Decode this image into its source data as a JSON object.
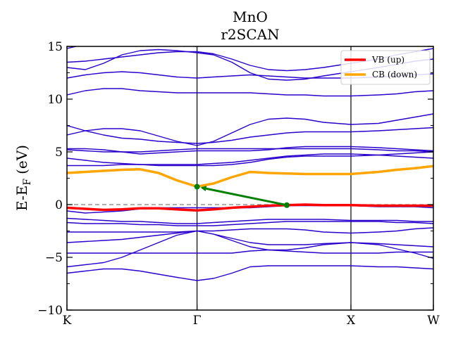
{
  "chart_data": {
    "type": "line",
    "title": "MnO",
    "subtitle": "r2SCAN",
    "ylabel": "E-E",
    "ylabel_sub": "F",
    "ylabel_unit": "(eV)",
    "ylim": [
      -10,
      15
    ],
    "yticks": [
      -10,
      -5,
      0,
      5,
      10,
      15
    ],
    "ytick_labels": [
      "−10",
      "−5",
      "0",
      "5",
      "10",
      "15"
    ],
    "xlim": [
      0,
      1
    ],
    "kpoints": [
      {
        "label": "K",
        "x": 0.0
      },
      {
        "label": "Γ",
        "x": 0.355
      },
      {
        "label": "X",
        "x": 0.775
      },
      {
        "label": "W",
        "x": 1.0
      }
    ],
    "fermi_level": 0,
    "legend_position": "top-right",
    "colors": {
      "bands": "#2a00cc",
      "vb": "#ff0000",
      "cb": "#ffa500",
      "arrow": "#008000",
      "fermi": "#808080"
    },
    "series": [
      {
        "name": "VB (up)",
        "color": "#ff0000",
        "x": [
          0,
          0.05,
          0.1,
          0.15,
          0.2,
          0.25,
          0.3,
          0.355,
          0.4,
          0.45,
          0.5,
          0.55,
          0.6,
          0.65,
          0.7,
          0.775,
          0.85,
          0.9,
          0.95,
          1.0
        ],
        "y": [
          -0.3,
          -0.4,
          -0.5,
          -0.45,
          -0.35,
          -0.35,
          -0.45,
          -0.55,
          -0.45,
          -0.3,
          -0.2,
          -0.1,
          -0.05,
          0.0,
          -0.05,
          -0.05,
          -0.1,
          -0.1,
          -0.1,
          -0.1
        ]
      },
      {
        "name": "CB (down)",
        "color": "#ffa500",
        "x": [
          0,
          0.05,
          0.1,
          0.15,
          0.2,
          0.25,
          0.3,
          0.355,
          0.4,
          0.45,
          0.5,
          0.55,
          0.6,
          0.65,
          0.7,
          0.775,
          0.85,
          0.9,
          0.95,
          1.0
        ],
        "y": [
          3.0,
          3.1,
          3.2,
          3.3,
          3.35,
          3.0,
          2.3,
          1.7,
          2.0,
          2.6,
          3.1,
          3.0,
          2.95,
          2.9,
          2.9,
          2.9,
          3.1,
          3.3,
          3.45,
          3.65
        ]
      }
    ],
    "bands": [
      [
        -6.5,
        -6.3,
        -6.1,
        -6.1,
        -6.3,
        -6.6,
        -6.9,
        -7.2,
        -7.0,
        -6.5,
        -5.9,
        -5.8,
        -5.8,
        -5.8,
        -5.8,
        -5.8,
        -5.9,
        -5.9,
        -6.0,
        -6.1
      ],
      [
        -5.9,
        -5.7,
        -5.5,
        -5.0,
        -4.3,
        -3.6,
        -2.9,
        -2.5,
        -2.8,
        -3.4,
        -4.0,
        -4.3,
        -4.3,
        -4.1,
        -3.8,
        -3.6,
        -3.8,
        -4.2,
        -4.6,
        -5.1
      ],
      [
        -4.6,
        -4.6,
        -4.6,
        -4.6,
        -4.6,
        -4.6,
        -4.6,
        -4.6,
        -4.6,
        -4.6,
        -4.4,
        -4.3,
        -4.4,
        -4.5,
        -4.6,
        -4.6,
        -4.6,
        -4.5,
        -4.5,
        -4.5
      ],
      [
        -3.6,
        -3.5,
        -3.4,
        -3.3,
        -3.1,
        -2.9,
        -2.7,
        -2.5,
        -2.8,
        -3.2,
        -3.6,
        -3.8,
        -3.8,
        -3.8,
        -3.7,
        -3.6,
        -3.7,
        -3.8,
        -3.9,
        -4.0
      ],
      [
        -2.6,
        -2.6,
        -2.6,
        -2.6,
        -2.6,
        -2.6,
        -2.6,
        -2.5,
        -2.5,
        -2.4,
        -2.3,
        -2.3,
        -2.3,
        -2.4,
        -2.6,
        -2.7,
        -2.6,
        -2.5,
        -2.3,
        -2.2
      ],
      [
        -1.7,
        -1.8,
        -1.8,
        -1.8,
        -1.9,
        -1.9,
        -2.0,
        -2.0,
        -2.0,
        -1.9,
        -1.8,
        -1.7,
        -1.6,
        -1.6,
        -1.6,
        -1.6,
        -1.6,
        -1.7,
        -1.7,
        -1.8
      ],
      [
        -1.3,
        -1.4,
        -1.5,
        -1.6,
        -1.6,
        -1.7,
        -1.8,
        -1.8,
        -1.7,
        -1.6,
        -1.5,
        -1.4,
        -1.4,
        -1.4,
        -1.4,
        -1.5,
        -1.5,
        -1.5,
        -1.6,
        -1.6
      ],
      [
        -0.6,
        -0.8,
        -0.7,
        -0.6,
        -0.4,
        -0.3,
        -0.3,
        -0.3,
        -0.3,
        -0.3,
        -0.3,
        -0.2,
        -0.1,
        -0.1,
        -0.1,
        -0.1,
        -0.2,
        -0.2,
        -0.2,
        -0.3
      ],
      [
        3.7,
        3.7,
        3.7,
        3.8,
        3.8,
        3.8,
        3.8,
        3.8,
        3.9,
        4.0,
        4.2,
        4.4,
        4.6,
        4.7,
        4.8,
        4.8,
        4.7,
        4.6,
        4.5,
        4.4
      ],
      [
        4.4,
        4.2,
        4.0,
        3.9,
        3.8,
        3.7,
        3.7,
        3.7,
        3.7,
        3.8,
        4.0,
        4.3,
        4.5,
        4.6,
        4.6,
        4.6,
        4.7,
        4.8,
        4.9,
        5.0
      ],
      [
        5.2,
        5.1,
        5.0,
        5.0,
        5.0,
        5.1,
        5.2,
        5.3,
        5.3,
        5.3,
        5.3,
        5.3,
        5.3,
        5.3,
        5.3,
        5.3,
        5.2,
        5.1,
        5.1,
        5.0
      ],
      [
        5.3,
        5.3,
        5.2,
        5.0,
        4.8,
        4.9,
        5.0,
        5.1,
        5.1,
        5.1,
        5.1,
        5.2,
        5.4,
        5.5,
        5.5,
        5.5,
        5.4,
        5.3,
        5.2,
        5.1
      ],
      [
        7.5,
        7.0,
        6.6,
        6.3,
        6.2,
        6.0,
        5.9,
        5.8,
        5.9,
        6.1,
        6.4,
        6.6,
        6.8,
        6.9,
        6.9,
        6.9,
        7.0,
        7.1,
        7.2,
        7.3
      ],
      [
        6.6,
        7.0,
        7.2,
        7.2,
        7.0,
        6.5,
        6.0,
        5.6,
        6.0,
        6.8,
        7.6,
        8.1,
        8.2,
        8.1,
        7.8,
        7.6,
        7.7,
        8.0,
        8.3,
        8.6
      ],
      [
        10.4,
        10.8,
        11.0,
        11.0,
        10.8,
        10.7,
        10.6,
        10.6,
        10.6,
        10.6,
        10.6,
        10.5,
        10.4,
        10.4,
        10.3,
        10.3,
        10.4,
        10.5,
        10.7,
        10.8
      ],
      [
        12.0,
        12.3,
        12.5,
        12.6,
        12.5,
        12.3,
        12.1,
        12.0,
        12.1,
        12.2,
        12.3,
        12.2,
        12.1,
        12.0,
        12.0,
        12.0,
        12.1,
        12.2,
        12.3,
        12.4
      ],
      [
        13.0,
        12.8,
        13.4,
        14.2,
        14.6,
        14.7,
        14.6,
        14.4,
        14.2,
        13.5,
        12.5,
        11.9,
        11.8,
        11.9,
        12.2,
        12.6,
        13.0,
        13.3,
        13.6,
        13.8
      ],
      [
        13.5,
        13.6,
        13.8,
        14.0,
        14.2,
        14.4,
        14.5,
        14.5,
        14.3,
        13.8,
        13.2,
        12.8,
        12.7,
        12.8,
        13.0,
        13.4,
        13.8,
        14.2,
        14.5,
        14.8
      ],
      [
        14.8,
        15.2,
        15.5,
        15.6,
        15.5,
        15.3,
        15.1,
        15.0,
        15.1,
        15.3,
        15.5,
        15.6,
        15.6,
        15.6,
        15.6,
        15.6,
        15.6,
        15.5,
        15.4,
        15.3
      ]
    ],
    "arrow": {
      "from": [
        0.6,
        -0.05
      ],
      "to": [
        0.355,
        1.7
      ]
    },
    "legend": [
      {
        "label": "VB (up)",
        "color": "#ff0000"
      },
      {
        "label": "CB (down)",
        "color": "#ffa500"
      }
    ]
  }
}
